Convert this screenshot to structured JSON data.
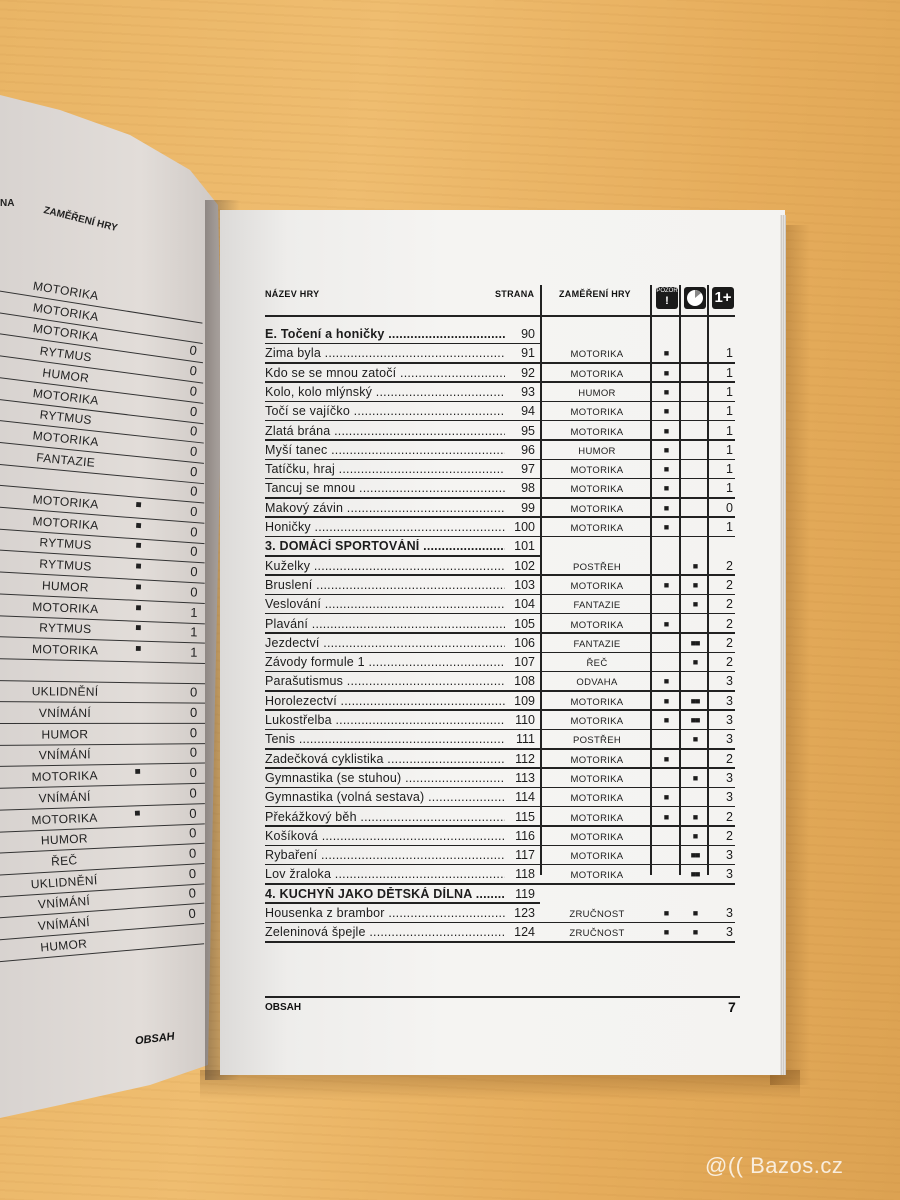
{
  "left_page": {
    "header_fragment": "NA",
    "header_focus": "ZAMĚŘENÍ HRY",
    "footer_title": "OBSAH",
    "rows": [
      {
        "focus": "MOTORIKA",
        "pozor": 0,
        "players": ""
      },
      {
        "focus": "MOTORIKA",
        "pozor": 0,
        "players": ""
      },
      {
        "focus": "MOTORIKA",
        "pozor": 0,
        "players": "0"
      },
      {
        "focus": "RYTMUS",
        "pozor": 0,
        "players": "0"
      },
      {
        "focus": "HUMOR",
        "pozor": 0,
        "players": "0"
      },
      {
        "focus": "MOTORIKA",
        "pozor": 0,
        "players": "0"
      },
      {
        "focus": "RYTMUS",
        "pozor": 0,
        "players": "0"
      },
      {
        "focus": "MOTORIKA",
        "pozor": 0,
        "players": "0"
      },
      {
        "focus": "FANTAZIE",
        "pozor": 0,
        "players": "0"
      },
      {
        "focus": "",
        "pozor": 0,
        "players": "0"
      },
      {
        "focus": "MOTORIKA",
        "pozor": 1,
        "players": "0"
      },
      {
        "focus": "MOTORIKA",
        "pozor": 1,
        "players": "0"
      },
      {
        "focus": "RYTMUS",
        "pozor": 1,
        "players": "0"
      },
      {
        "focus": "RYTMUS",
        "pozor": 1,
        "players": "0"
      },
      {
        "focus": "HUMOR",
        "pozor": 1,
        "players": "0"
      },
      {
        "focus": "MOTORIKA",
        "pozor": 1,
        "players": "1"
      },
      {
        "focus": "RYTMUS",
        "pozor": 1,
        "players": "1"
      },
      {
        "focus": "MOTORIKA",
        "pozor": 1,
        "players": "1"
      },
      {
        "focus": "",
        "pozor": 0,
        "players": ""
      },
      {
        "focus": "UKLIDNĚNÍ",
        "pozor": 0,
        "players": "0"
      },
      {
        "focus": "VNÍMÁNÍ",
        "pozor": 0,
        "players": "0"
      },
      {
        "focus": "HUMOR",
        "pozor": 0,
        "players": "0"
      },
      {
        "focus": "VNÍMÁNÍ",
        "pozor": 0,
        "players": "0"
      },
      {
        "focus": "MOTORIKA",
        "pozor": 1,
        "players": "0"
      },
      {
        "focus": "VNÍMÁNÍ",
        "pozor": 0,
        "players": "0"
      },
      {
        "focus": "MOTORIKA",
        "pozor": 1,
        "players": "0"
      },
      {
        "focus": "HUMOR",
        "pozor": 0,
        "players": "0"
      },
      {
        "focus": "ŘEČ",
        "pozor": 0,
        "players": "0"
      },
      {
        "focus": "UKLIDNĚNÍ",
        "pozor": 0,
        "players": "0"
      },
      {
        "focus": "VNÍMÁNÍ",
        "pozor": 0,
        "players": "0"
      },
      {
        "focus": "VNÍMÁNÍ",
        "pozor": 0,
        "players": "0"
      },
      {
        "focus": "HUMOR",
        "pozor": 0,
        "players": ""
      }
    ]
  },
  "right_page": {
    "headers": {
      "name": "NÁZEV HRY",
      "page": "STRANA",
      "focus": "ZAMĚŘENÍ HRY",
      "pozor_icon": "POZOR",
      "pozor_mark": "!",
      "time_icon": "clock-icon",
      "players_icon": "1+"
    },
    "rows": [
      {
        "name": "E. Točení a honičky",
        "page": "90",
        "section": true
      },
      {
        "name": "Zima byla",
        "page": "91",
        "focus": "MOTORIKA",
        "pozor": 1,
        "time": 0,
        "players": "1"
      },
      {
        "name": "Kdo se se mnou zatočí",
        "page": "92",
        "focus": "MOTORIKA",
        "pozor": 1,
        "time": 0,
        "players": "1"
      },
      {
        "name": "Kolo, kolo mlýnský",
        "page": "93",
        "focus": "HUMOR",
        "pozor": 1,
        "time": 0,
        "players": "1"
      },
      {
        "name": "Točí se vajíčko",
        "page": "94",
        "focus": "MOTORIKA",
        "pozor": 1,
        "time": 0,
        "players": "1"
      },
      {
        "name": "Zlatá brána",
        "page": "95",
        "focus": "MOTORIKA",
        "pozor": 1,
        "time": 0,
        "players": "1"
      },
      {
        "name": "Myší tanec",
        "page": "96",
        "focus": "HUMOR",
        "pozor": 1,
        "time": 0,
        "players": "1"
      },
      {
        "name": "Tatíčku, hraj",
        "page": "97",
        "focus": "MOTORIKA",
        "pozor": 1,
        "time": 0,
        "players": "1"
      },
      {
        "name": "Tancuj se mnou",
        "page": "98",
        "focus": "MOTORIKA",
        "pozor": 1,
        "time": 0,
        "players": "1"
      },
      {
        "name": "Makový závin",
        "page": "99",
        "focus": "MOTORIKA",
        "pozor": 1,
        "time": 0,
        "players": "0"
      },
      {
        "name": "Honičky",
        "page": "100",
        "focus": "MOTORIKA",
        "pozor": 1,
        "time": 0,
        "players": "1"
      },
      {
        "name": "3. DOMÁCÍ SPORTOVÁNÍ",
        "page": "101",
        "section": true
      },
      {
        "name": "Kuželky",
        "page": "102",
        "focus": "POSTŘEH",
        "pozor": 0,
        "time": 1,
        "players": "2"
      },
      {
        "name": "Bruslení",
        "page": "103",
        "focus": "MOTORIKA",
        "pozor": 1,
        "time": 1,
        "players": "2"
      },
      {
        "name": "Veslování",
        "page": "104",
        "focus": "FANTAZIE",
        "pozor": 0,
        "time": 1,
        "players": "2"
      },
      {
        "name": "Plavání",
        "page": "105",
        "focus": "MOTORIKA",
        "pozor": 1,
        "time": 0,
        "players": "2"
      },
      {
        "name": "Jezdectví",
        "page": "106",
        "focus": "FANTAZIE",
        "pozor": 0,
        "time": 2,
        "players": "2"
      },
      {
        "name": "Závody formule 1",
        "page": "107",
        "focus": "ŘEČ",
        "pozor": 0,
        "time": 1,
        "players": "2"
      },
      {
        "name": "Parašutismus",
        "page": "108",
        "focus": "ODVAHA",
        "pozor": 1,
        "time": 0,
        "players": "3"
      },
      {
        "name": "Horolezectví",
        "page": "109",
        "focus": "MOTORIKA",
        "pozor": 1,
        "time": 2,
        "players": "3"
      },
      {
        "name": "Lukostřelba",
        "page": "110",
        "focus": "MOTORIKA",
        "pozor": 1,
        "time": 2,
        "players": "3"
      },
      {
        "name": "Tenis",
        "page": "111",
        "focus": "POSTŘEH",
        "pozor": 0,
        "time": 1,
        "players": "3"
      },
      {
        "name": "Zadečková cyklistika",
        "page": "112",
        "focus": "MOTORIKA",
        "pozor": 1,
        "time": 0,
        "players": "2"
      },
      {
        "name": "Gymnastika (se stuhou)",
        "page": "113",
        "focus": "MOTORIKA",
        "pozor": 0,
        "time": 1,
        "players": "3"
      },
      {
        "name": "Gymnastika (volná sestava)",
        "page": "114",
        "focus": "MOTORIKA",
        "pozor": 1,
        "time": 0,
        "players": "3"
      },
      {
        "name": "Překážkový běh",
        "page": "115",
        "focus": "MOTORIKA",
        "pozor": 1,
        "time": 1,
        "players": "2"
      },
      {
        "name": "Košíková",
        "page": "116",
        "focus": "MOTORIKA",
        "pozor": 0,
        "time": 1,
        "players": "2"
      },
      {
        "name": "Rybaření",
        "page": "117",
        "focus": "MOTORIKA",
        "pozor": 0,
        "time": 2,
        "players": "3"
      },
      {
        "name": "Lov žraloka",
        "page": "118",
        "focus": "MOTORIKA",
        "pozor": 0,
        "time": 2,
        "players": "3"
      },
      {
        "name": "4. KUCHYŇ JAKO DĚTSKÁ DÍLNA",
        "page": "119",
        "section": true
      },
      {
        "name": "Housenka z brambor",
        "page": "123",
        "focus": "ZRUČNOST",
        "pozor": 1,
        "time": 1,
        "players": "3"
      },
      {
        "name": "Zeleninová špejle",
        "page": "124",
        "focus": "ZRUČNOST",
        "pozor": 1,
        "time": 1,
        "players": "3"
      }
    ],
    "footer_title": "OBSAH",
    "page_number": "7"
  },
  "watermark": "@(( Bazos.cz",
  "colors": {
    "wood": "#e9b566",
    "paper": "#f4f3f1",
    "ink": "#1c1c1c"
  }
}
